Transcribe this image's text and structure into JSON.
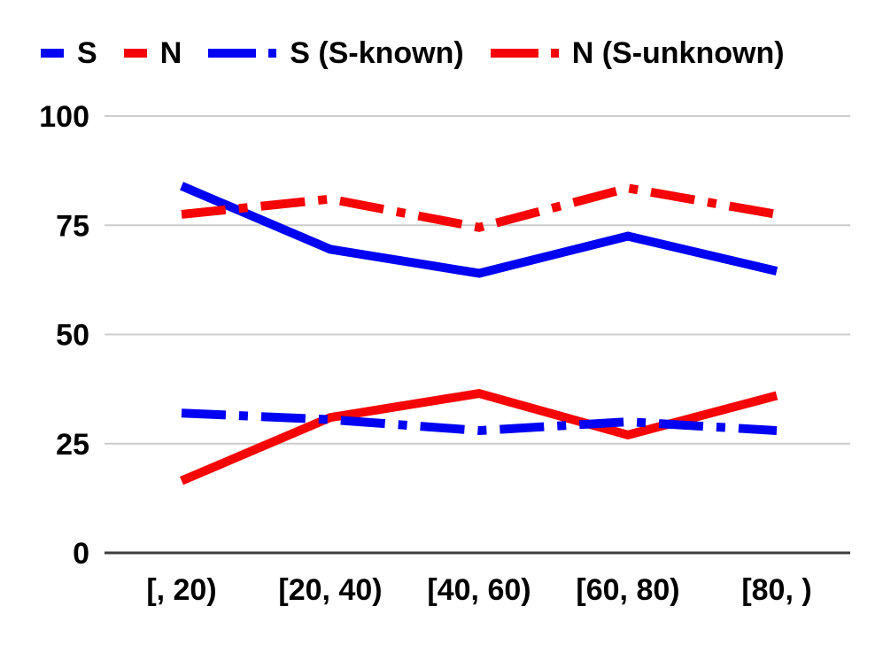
{
  "chart_data": {
    "type": "line",
    "categories": [
      "[, 20)",
      "[20, 40)",
      "[40, 60)",
      "[60, 80)",
      "[80, )"
    ],
    "series": [
      {
        "name": "S",
        "color": "#0202F2",
        "dash": "solid",
        "values": [
          84,
          69.5,
          64,
          72.5,
          64.5
        ]
      },
      {
        "name": "N",
        "color": "#F50505",
        "dash": "solid",
        "values": [
          16.5,
          31,
          36.5,
          27,
          36
        ]
      },
      {
        "name": "S (S-known)",
        "color": "#0202F2",
        "dash": "dash-dot",
        "values": [
          32,
          30.5,
          28,
          30,
          28
        ]
      },
      {
        "name": "N (S-unknown)",
        "color": "#F50505",
        "dash": "dash-dot",
        "values": [
          77.5,
          81,
          74.5,
          83.5,
          77.5
        ]
      }
    ],
    "ylim": [
      0,
      100
    ],
    "yticks": [
      0,
      25,
      50,
      75,
      100
    ],
    "grid": true,
    "legend_position": "top"
  },
  "colors": {
    "gridline": "#CCCCCC",
    "axis": "#3D3D3D",
    "text": "#000000",
    "background": "#FFFFFF"
  }
}
